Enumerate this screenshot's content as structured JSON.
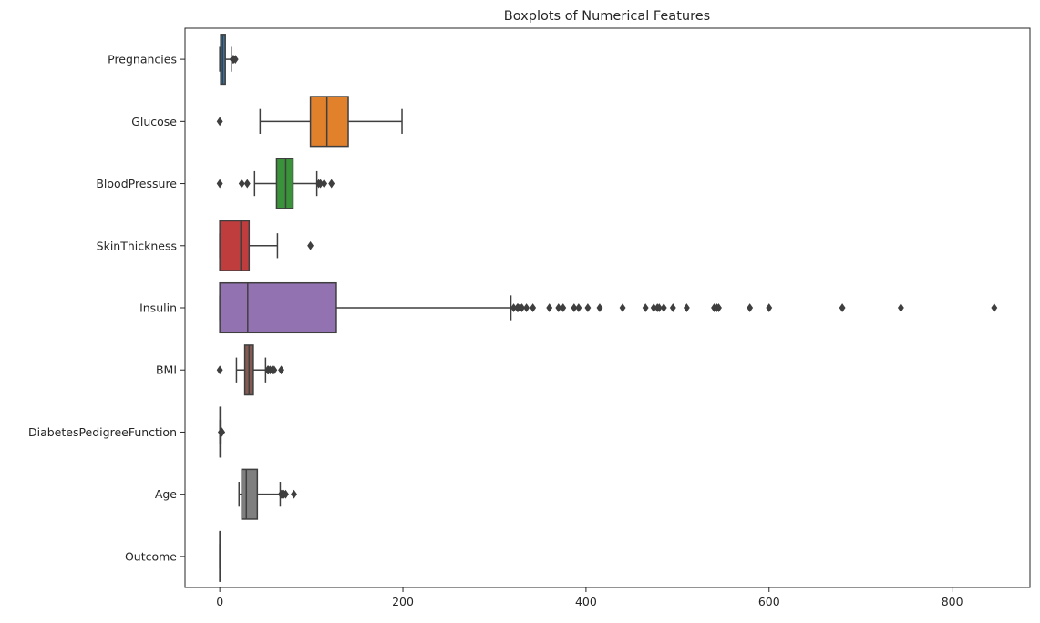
{
  "chart_data": {
    "type": "boxplot",
    "orientation": "horizontal",
    "title": "Boxplots of Numerical Features",
    "xlabel": "",
    "ylabel": "",
    "xlim": [
      -38,
      885
    ],
    "xticks": [
      0,
      200,
      400,
      600,
      800
    ],
    "grid": false,
    "series": [
      {
        "name": "Pregnancies",
        "color": "#3274a1",
        "whisker_low": 0,
        "q1": 1,
        "median": 3,
        "q3": 6,
        "whisker_high": 13,
        "outliers": [
          14,
          15,
          17
        ]
      },
      {
        "name": "Glucose",
        "color": "#e1812c",
        "whisker_low": 44,
        "q1": 99,
        "median": 117,
        "q3": 140.25,
        "whisker_high": 199,
        "outliers": [
          0
        ]
      },
      {
        "name": "BloodPressure",
        "color": "#3a923a",
        "whisker_low": 38,
        "q1": 62,
        "median": 72,
        "q3": 80,
        "whisker_high": 106,
        "outliers": [
          0,
          24,
          30,
          108,
          110,
          114,
          122
        ]
      },
      {
        "name": "SkinThickness",
        "color": "#c03d3e",
        "whisker_low": 0,
        "q1": 0,
        "median": 23,
        "q3": 32,
        "whisker_high": 63,
        "outliers": [
          99
        ]
      },
      {
        "name": "Insulin",
        "color": "#9372b2",
        "whisker_low": 0,
        "q1": 0,
        "median": 30.5,
        "q3": 127.25,
        "whisker_high": 318,
        "outliers": [
          321,
          325,
          326,
          328,
          330,
          335,
          342,
          360,
          370,
          375,
          387,
          392,
          402,
          415,
          440,
          465,
          474,
          478,
          480,
          485,
          495,
          510,
          540,
          543,
          545,
          579,
          600,
          680,
          744,
          846
        ]
      },
      {
        "name": "BMI",
        "color": "#845b53",
        "whisker_low": 18.2,
        "q1": 27.3,
        "median": 32,
        "q3": 36.6,
        "whisker_high": 50,
        "outliers": [
          0,
          52.3,
          52.9,
          53.2,
          55,
          57.3,
          59.4,
          67.1
        ]
      },
      {
        "name": "DiabetesPedigreeFunction",
        "color": "#d684bd",
        "whisker_low": 0.078,
        "q1": 0.24,
        "median": 0.37,
        "q3": 0.63,
        "whisker_high": 1.2,
        "outliers": [
          1.3,
          1.5,
          1.7,
          2.0,
          2.3,
          2.42
        ]
      },
      {
        "name": "Age",
        "color": "#7f7f7f",
        "whisker_low": 21,
        "q1": 24,
        "median": 29,
        "q3": 41,
        "whisker_high": 66,
        "outliers": [
          67,
          68,
          69,
          70,
          72,
          81
        ]
      },
      {
        "name": "Outcome",
        "color": "#a9aa35",
        "whisker_low": 0,
        "q1": 0,
        "median": 0,
        "q3": 1,
        "whisker_high": 1,
        "outliers": []
      }
    ]
  }
}
